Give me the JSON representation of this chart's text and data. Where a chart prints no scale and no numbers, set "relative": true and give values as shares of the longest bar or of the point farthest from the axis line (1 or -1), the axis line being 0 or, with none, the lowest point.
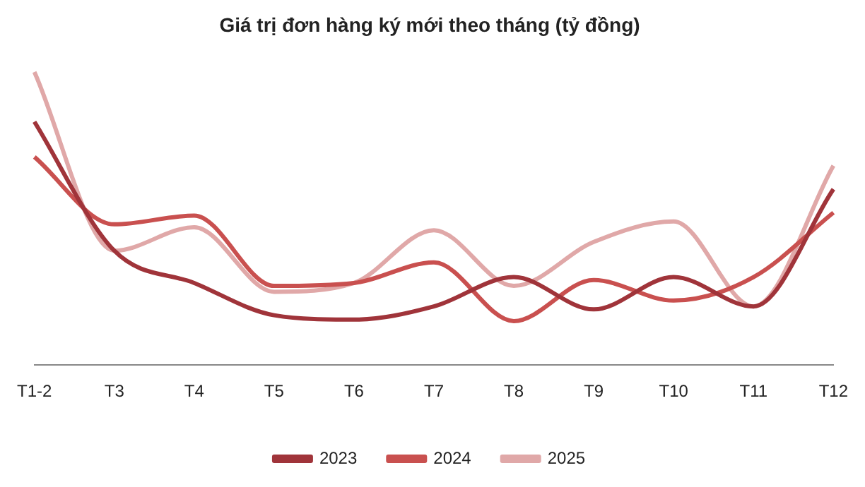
{
  "chart_data": {
    "type": "line",
    "title": "Giá trị đơn hàng ký mới theo tháng (tỷ đồng)",
    "relative": true,
    "categories": [
      "T1-2",
      "T3",
      "T4",
      "T5",
      "T6",
      "T7",
      "T8",
      "T9",
      "T10",
      "T11",
      "T12"
    ],
    "series": [
      {
        "name": "2023",
        "color": "#a0343a",
        "values": [
          0.83,
          0.39,
          0.28,
          0.17,
          0.155,
          0.2,
          0.3,
          0.19,
          0.3,
          0.2,
          0.6
        ]
      },
      {
        "name": "2024",
        "color": "#c9504f",
        "values": [
          0.71,
          0.48,
          0.51,
          0.27,
          0.28,
          0.35,
          0.15,
          0.29,
          0.22,
          0.3,
          0.52
        ]
      },
      {
        "name": "2025",
        "color": "#e0a8a8",
        "values": [
          1,
          0.39,
          0.47,
          0.25,
          0.28,
          0.46,
          0.27,
          0.42,
          0.49,
          0.2,
          0.68
        ]
      }
    ],
    "legend": "bottom",
    "grid": false,
    "marker": "none",
    "line_style": "solid"
  }
}
